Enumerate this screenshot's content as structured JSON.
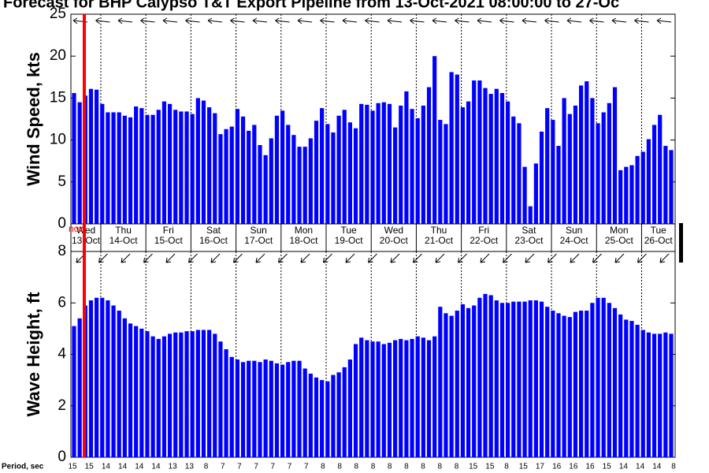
{
  "title": "Forecast for BHP Calypso T&T Export Pipeline from 13-Oct-2021 08:00:00 to 27-Oc",
  "now_label": "now",
  "days": [
    {
      "weekday": "Wed",
      "date": "13-Oct"
    },
    {
      "weekday": "Thu",
      "date": "14-Oct"
    },
    {
      "weekday": "Fri",
      "date": "15-Oct"
    },
    {
      "weekday": "Sat",
      "date": "16-Oct"
    },
    {
      "weekday": "Sun",
      "date": "17-Oct"
    },
    {
      "weekday": "Mon",
      "date": "18-Oct"
    },
    {
      "weekday": "Tue",
      "date": "19-Oct"
    },
    {
      "weekday": "Wed",
      "date": "20-Oct"
    },
    {
      "weekday": "Thu",
      "date": "21-Oct"
    },
    {
      "weekday": "Fri",
      "date": "22-Oct"
    },
    {
      "weekday": "Sat",
      "date": "23-Oct"
    },
    {
      "weekday": "Sun",
      "date": "24-Oct"
    },
    {
      "weekday": "Mon",
      "date": "25-Oct"
    },
    {
      "weekday": "Tue",
      "date": "26-Oct"
    }
  ],
  "period": {
    "label": "Period, sec",
    "values": [
      15,
      15,
      14,
      14,
      14,
      14,
      13,
      13,
      8,
      7,
      7,
      7,
      7,
      7,
      7,
      8,
      8,
      8,
      8,
      8,
      8,
      8,
      8,
      8,
      15,
      15,
      8,
      15,
      17,
      16,
      16,
      16,
      15,
      14,
      14,
      14,
      8
    ]
  },
  "chart_data": [
    {
      "type": "bar",
      "ylabel": "Wind Speed, kts",
      "color": "#0000ff",
      "ylim": [
        0,
        25
      ],
      "yticks": [
        0,
        5,
        10,
        15,
        20,
        25
      ],
      "values": [
        15.6,
        14.5,
        15.3,
        16.1,
        16.0,
        14.3,
        13.3,
        13.3,
        13.3,
        12.9,
        12.7,
        14.0,
        13.8,
        13.0,
        13.0,
        13.6,
        14.6,
        14.3,
        13.6,
        13.4,
        13.4,
        13.1,
        15.0,
        14.7,
        13.9,
        13.2,
        10.7,
        11.3,
        11.6,
        13.7,
        12.8,
        11.1,
        11.8,
        9.4,
        8.2,
        10.2,
        12.9,
        13.5,
        11.8,
        10.6,
        9.2,
        9.2,
        10.2,
        12.3,
        13.8,
        11.9,
        10.9,
        12.9,
        13.6,
        12.1,
        11.4,
        14.3,
        14.2,
        13.5,
        14.4,
        14.5,
        14.3,
        11.5,
        14.1,
        15.8,
        13.7,
        12.6,
        14.1,
        16.3,
        20.0,
        12.4,
        11.9,
        18.1,
        17.8,
        13.9,
        14.6,
        17.1,
        17.1,
        16.2,
        15.5,
        16.1,
        15.6,
        14.6,
        12.8,
        12.0,
        6.8,
        2.1,
        7.2,
        11.0,
        13.8,
        12.4,
        9.3,
        15.0,
        13.1,
        14.1,
        16.5,
        17.0,
        15.0,
        12.0,
        13.3,
        14.4,
        16.3,
        6.4,
        6.8,
        7.0,
        8.1,
        8.6,
        10.1,
        11.8,
        13.0,
        9.3,
        8.8
      ]
    },
    {
      "type": "bar",
      "ylabel": "Wave Height, ft",
      "color": "#0000ff",
      "ylim": [
        0,
        8
      ],
      "yticks": [
        0,
        2,
        4,
        6,
        8
      ],
      "values": [
        5.1,
        5.4,
        5.9,
        6.1,
        6.2,
        6.2,
        6.1,
        5.9,
        5.7,
        5.4,
        5.2,
        5.1,
        5.0,
        4.9,
        4.7,
        4.6,
        4.7,
        4.8,
        4.85,
        4.85,
        4.9,
        4.9,
        4.95,
        4.95,
        4.95,
        4.8,
        4.5,
        4.2,
        3.9,
        3.8,
        3.7,
        3.75,
        3.75,
        3.7,
        3.8,
        3.75,
        3.65,
        3.6,
        3.7,
        3.75,
        3.75,
        3.45,
        3.25,
        3.1,
        3.0,
        2.95,
        3.2,
        3.3,
        3.5,
        3.8,
        4.4,
        4.65,
        4.55,
        4.5,
        4.5,
        4.4,
        4.45,
        4.55,
        4.6,
        4.55,
        4.6,
        4.7,
        4.65,
        4.55,
        4.7,
        5.85,
        5.6,
        5.5,
        5.7,
        5.95,
        5.8,
        5.9,
        6.2,
        6.35,
        6.3,
        6.1,
        6.0,
        6.0,
        6.05,
        6.05,
        6.05,
        6.1,
        6.1,
        6.05,
        5.85,
        5.7,
        5.6,
        5.5,
        5.45,
        5.65,
        5.7,
        5.7,
        6.0,
        6.2,
        6.2,
        6.0,
        5.8,
        5.55,
        5.35,
        5.3,
        5.15,
        4.95,
        4.85,
        4.8,
        4.8,
        4.85,
        4.8
      ]
    }
  ]
}
